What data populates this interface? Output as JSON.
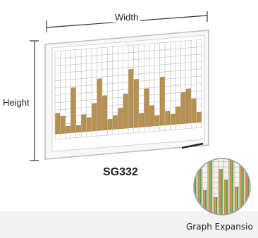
{
  "labels": {
    "width": "Width",
    "height": "Height",
    "model": "SG332",
    "expansion": "Graph Expansio"
  },
  "colors": {
    "bar": "#b89050",
    "bar_top": "#a07c40",
    "board_frame": "#c8c8c8",
    "grid": "#b8b8b8",
    "green_stripe": "#5a9a50",
    "orange_stripe": "#d08a3a"
  },
  "chart_data": {
    "type": "bar",
    "title": "",
    "xlabel": "",
    "ylabel": "",
    "values": [
      3,
      2.5,
      1,
      6.5,
      1,
      2.5,
      2,
      4,
      7.5,
      5,
      1.5,
      2,
      3,
      5,
      8.5,
      7,
      2,
      5.5,
      3,
      1.5,
      7,
      2,
      1.5,
      2.5,
      4.5,
      5,
      3.5,
      1.5
    ],
    "ylim": [
      0,
      12
    ],
    "grid": true
  }
}
